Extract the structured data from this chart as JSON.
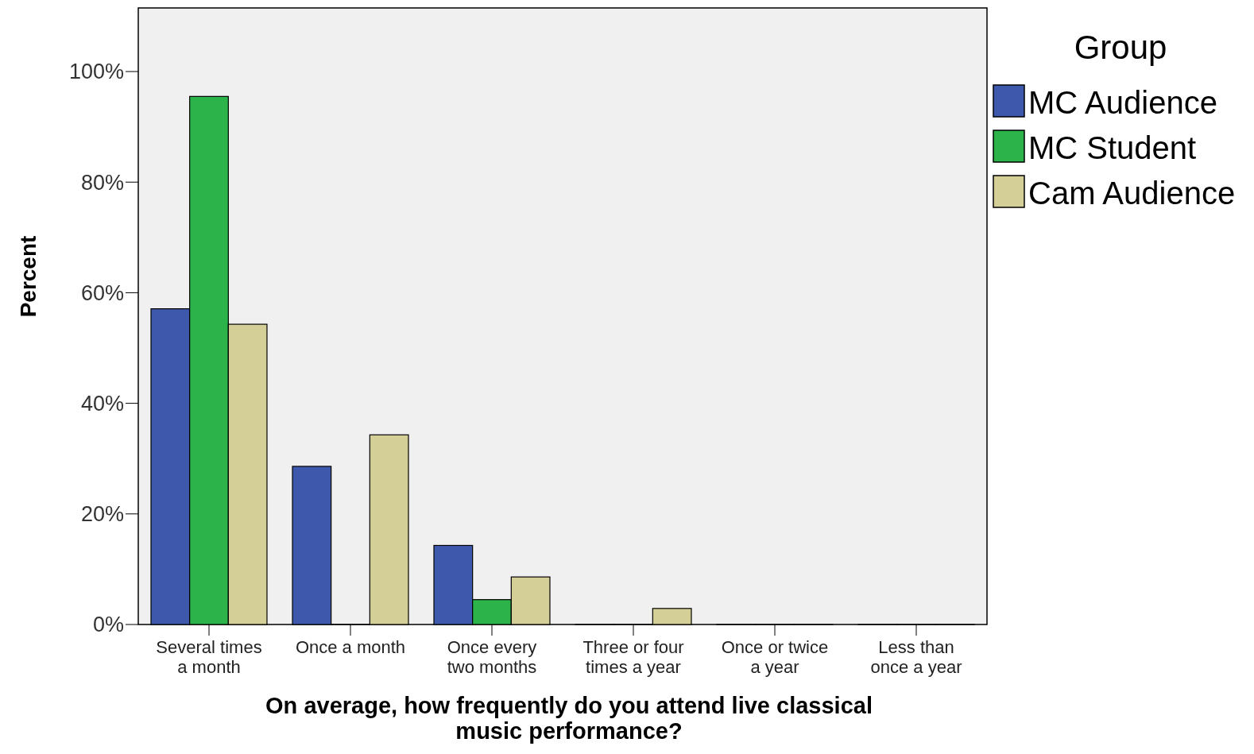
{
  "chart_data": {
    "type": "bar",
    "xlabel": "On average, how frequently do you attend live classical music performance?",
    "ylabel": "Percent",
    "legend_title": "Group",
    "legend": "top right",
    "categories": [
      "Several times a month",
      "Once a month",
      "Once every two months",
      "Three or four times a year",
      "Once or twice a year",
      "Less than once a year"
    ],
    "series": [
      {
        "name": "MC Audience",
        "color": "#3e58ac",
        "values": [
          57.1,
          28.6,
          14.3,
          0,
          0,
          0
        ]
      },
      {
        "name": "MC Student",
        "color": "#2cb34a",
        "values": [
          95.5,
          0,
          4.5,
          0,
          0,
          0
        ]
      },
      {
        "name": "Cam Audience",
        "color": "#d4cf96",
        "values": [
          54.3,
          34.3,
          8.6,
          2.9,
          0,
          0
        ]
      }
    ],
    "ylim": [
      0,
      111.5
    ],
    "yticks": [
      {
        "value": 0,
        "label": "0%"
      },
      {
        "value": 20,
        "label": "20%"
      },
      {
        "value": 40,
        "label": "40%"
      },
      {
        "value": 60,
        "label": "60%"
      },
      {
        "value": 80,
        "label": "80%"
      },
      {
        "value": 100,
        "label": "100%"
      }
    ]
  }
}
